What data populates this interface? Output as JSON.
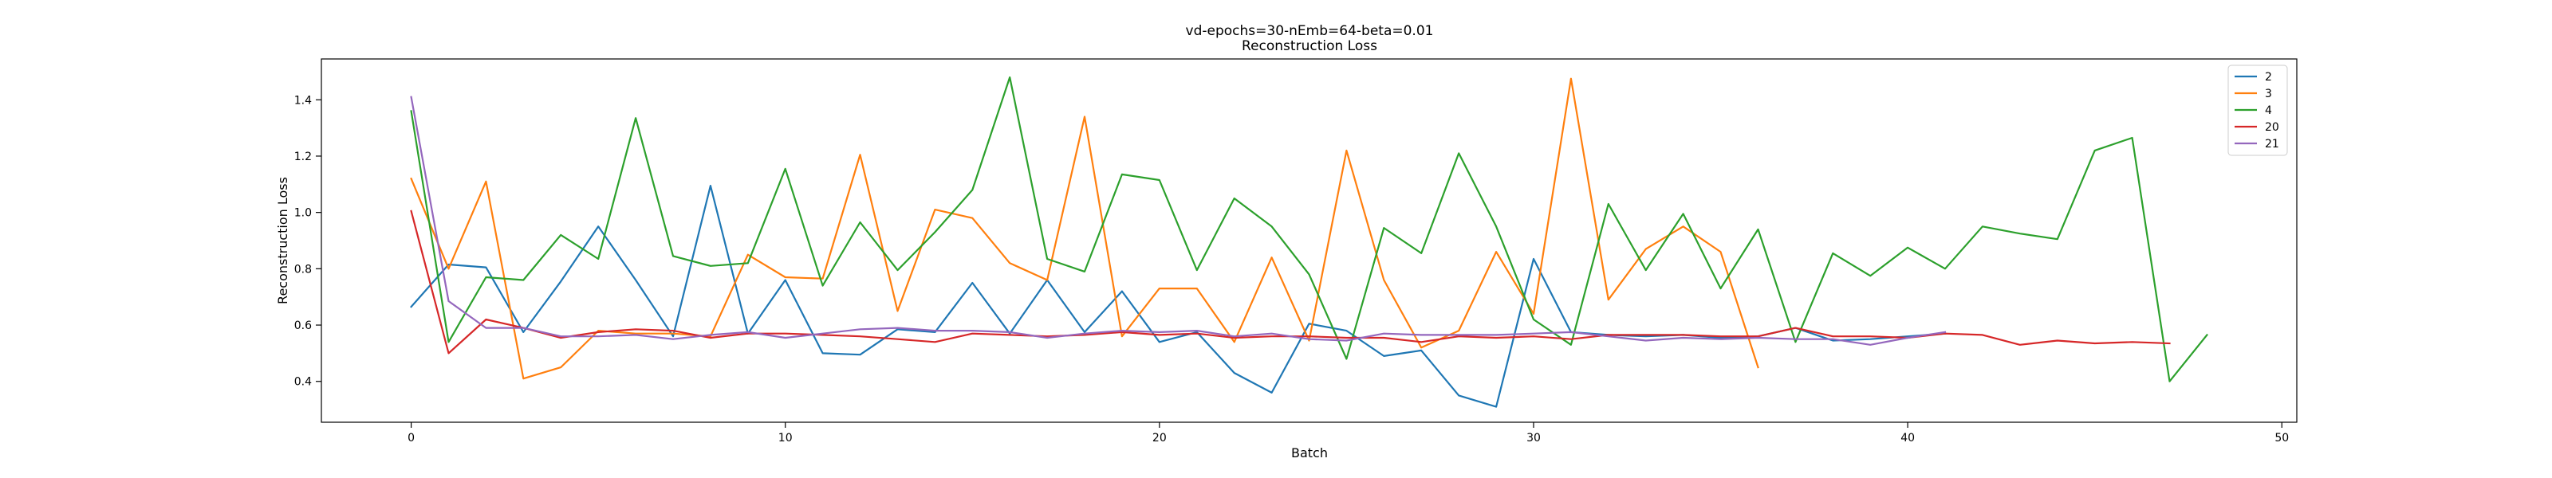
{
  "chart_data": {
    "type": "line",
    "title": "vd-epochs=30-nEmb=64-beta=0.01",
    "subtitle": "Reconstruction Loss",
    "xlabel": "Batch",
    "ylabel": "Reconstruction Loss",
    "xlim": [
      -2.4,
      50.4
    ],
    "ylim": [
      0.255,
      1.545
    ],
    "xticks": [
      0,
      10,
      20,
      30,
      40,
      50
    ],
    "yticks": [
      0.4,
      0.6,
      0.8,
      1.0,
      1.2,
      1.4
    ],
    "ytick_labels": [
      "0.4",
      "0.6",
      "0.8",
      "1.0",
      "1.2",
      "1.4"
    ],
    "grid": false,
    "legend_position": "top-right",
    "series": [
      {
        "name": "2",
        "color": "#1f77b4",
        "values": [
          0.665,
          0.815,
          0.805,
          0.575,
          0.755,
          0.95,
          0.76,
          0.56,
          1.095,
          0.57,
          0.76,
          0.5,
          0.495,
          0.585,
          0.575,
          0.75,
          0.57,
          0.76,
          0.575,
          0.72,
          0.54,
          0.575,
          0.43,
          0.36,
          0.605,
          0.58,
          0.49,
          0.51,
          0.35,
          0.31,
          0.835,
          0.575,
          0.565,
          0.56,
          0.565,
          0.555,
          0.56,
          0.59,
          0.545,
          0.55,
          0.56,
          0.57
        ]
      },
      {
        "name": "3",
        "color": "#ff7f0e",
        "values": [
          1.12,
          0.8,
          1.11,
          0.41,
          0.45,
          0.58,
          0.57,
          0.57,
          0.56,
          0.85,
          0.77,
          0.765,
          1.205,
          0.65,
          1.01,
          0.98,
          0.82,
          0.76,
          1.34,
          0.56,
          0.73,
          0.73,
          0.54,
          0.84,
          0.545,
          1.22,
          0.76,
          0.52,
          0.58,
          0.86,
          0.64,
          1.475,
          0.69,
          0.87,
          0.95,
          0.86,
          0.45
        ]
      },
      {
        "name": "4",
        "color": "#2ca02c",
        "values": [
          1.36,
          0.54,
          0.77,
          0.76,
          0.92,
          0.835,
          1.335,
          0.845,
          0.81,
          0.82,
          1.155,
          0.74,
          0.965,
          0.795,
          0.93,
          1.08,
          1.48,
          0.835,
          0.79,
          1.135,
          1.115,
          0.795,
          1.05,
          0.95,
          0.78,
          0.48,
          0.945,
          0.855,
          1.21,
          0.95,
          0.62,
          0.53,
          1.03,
          0.795,
          0.995,
          0.73,
          0.94,
          0.54,
          0.855,
          0.775,
          0.875,
          0.8,
          0.95,
          0.925,
          0.905,
          1.22,
          1.265,
          0.4,
          0.565
        ]
      },
      {
        "name": "20",
        "color": "#d62728",
        "values": [
          1.005,
          0.5,
          0.62,
          0.59,
          0.555,
          0.575,
          0.585,
          0.58,
          0.555,
          0.57,
          0.57,
          0.565,
          0.56,
          0.55,
          0.54,
          0.57,
          0.565,
          0.56,
          0.565,
          0.575,
          0.565,
          0.57,
          0.555,
          0.56,
          0.56,
          0.555,
          0.555,
          0.54,
          0.56,
          0.555,
          0.56,
          0.55,
          0.565,
          0.565,
          0.565,
          0.56,
          0.56,
          0.59,
          0.56,
          0.56,
          0.555,
          0.57,
          0.565,
          0.53,
          0.545,
          0.535,
          0.54,
          0.535
        ]
      },
      {
        "name": "21",
        "color": "#9467bd",
        "values": [
          1.41,
          0.685,
          0.59,
          0.59,
          0.56,
          0.56,
          0.565,
          0.55,
          0.565,
          0.575,
          0.555,
          0.57,
          0.585,
          0.59,
          0.58,
          0.58,
          0.575,
          0.555,
          0.57,
          0.58,
          0.575,
          0.58,
          0.56,
          0.57,
          0.55,
          0.545,
          0.57,
          0.565,
          0.565,
          0.565,
          0.57,
          0.575,
          0.56,
          0.545,
          0.555,
          0.55,
          0.555,
          0.55,
          0.55,
          0.53,
          0.555,
          0.575
        ]
      }
    ]
  }
}
